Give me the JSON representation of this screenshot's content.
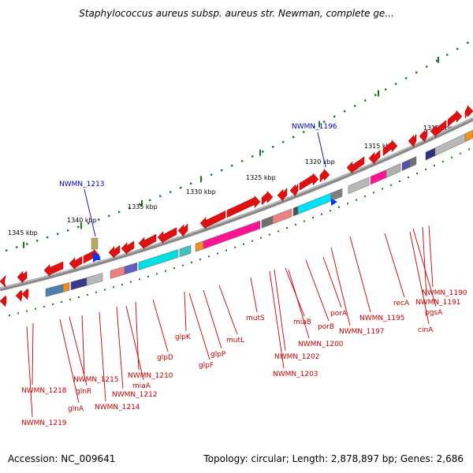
{
  "title": "Staphylococcus aureus subsp. aureus str. Newman, complete ge...",
  "footer": {
    "accession": "Accession: NC_009641",
    "summary": "Topology: circular; Length: 2,878,897 bp; Genes: 2,686"
  },
  "colors": {
    "gene_arrow": "#e01010",
    "label": "#cc0000",
    "highlight_label": "#0000cc",
    "backbone": "#8a8a8a",
    "scale_tick": "#1a7a1a"
  },
  "kbp_ticks": [
    "1345 kbp",
    "1340 kbp",
    "1335 kbp",
    "1330 kbp",
    "1325 kbp",
    "1320 kbp",
    "1315 kbp",
    "1310 kbp"
  ],
  "highlights": [
    "NWMN_1213",
    "NWMN_1196"
  ],
  "genes": [
    "NWMN_1218",
    "NWMN_1219",
    "glnA",
    "glnR",
    "NWMN_1215",
    "NWMN_1214",
    "NWMN_1212",
    "miaA",
    "NWMN_1210",
    "glpD",
    "glpK",
    "glpF",
    "glpP",
    "mutL",
    "mutS",
    "NWMN_1203",
    "NWMN_1202",
    "NWMN_1200",
    "miaB",
    "porB",
    "porA",
    "NWMN_1197",
    "NWMN_1195",
    "cinA",
    "recA",
    "pgsA",
    "NWMN_1191",
    "NWMN_1190"
  ]
}
